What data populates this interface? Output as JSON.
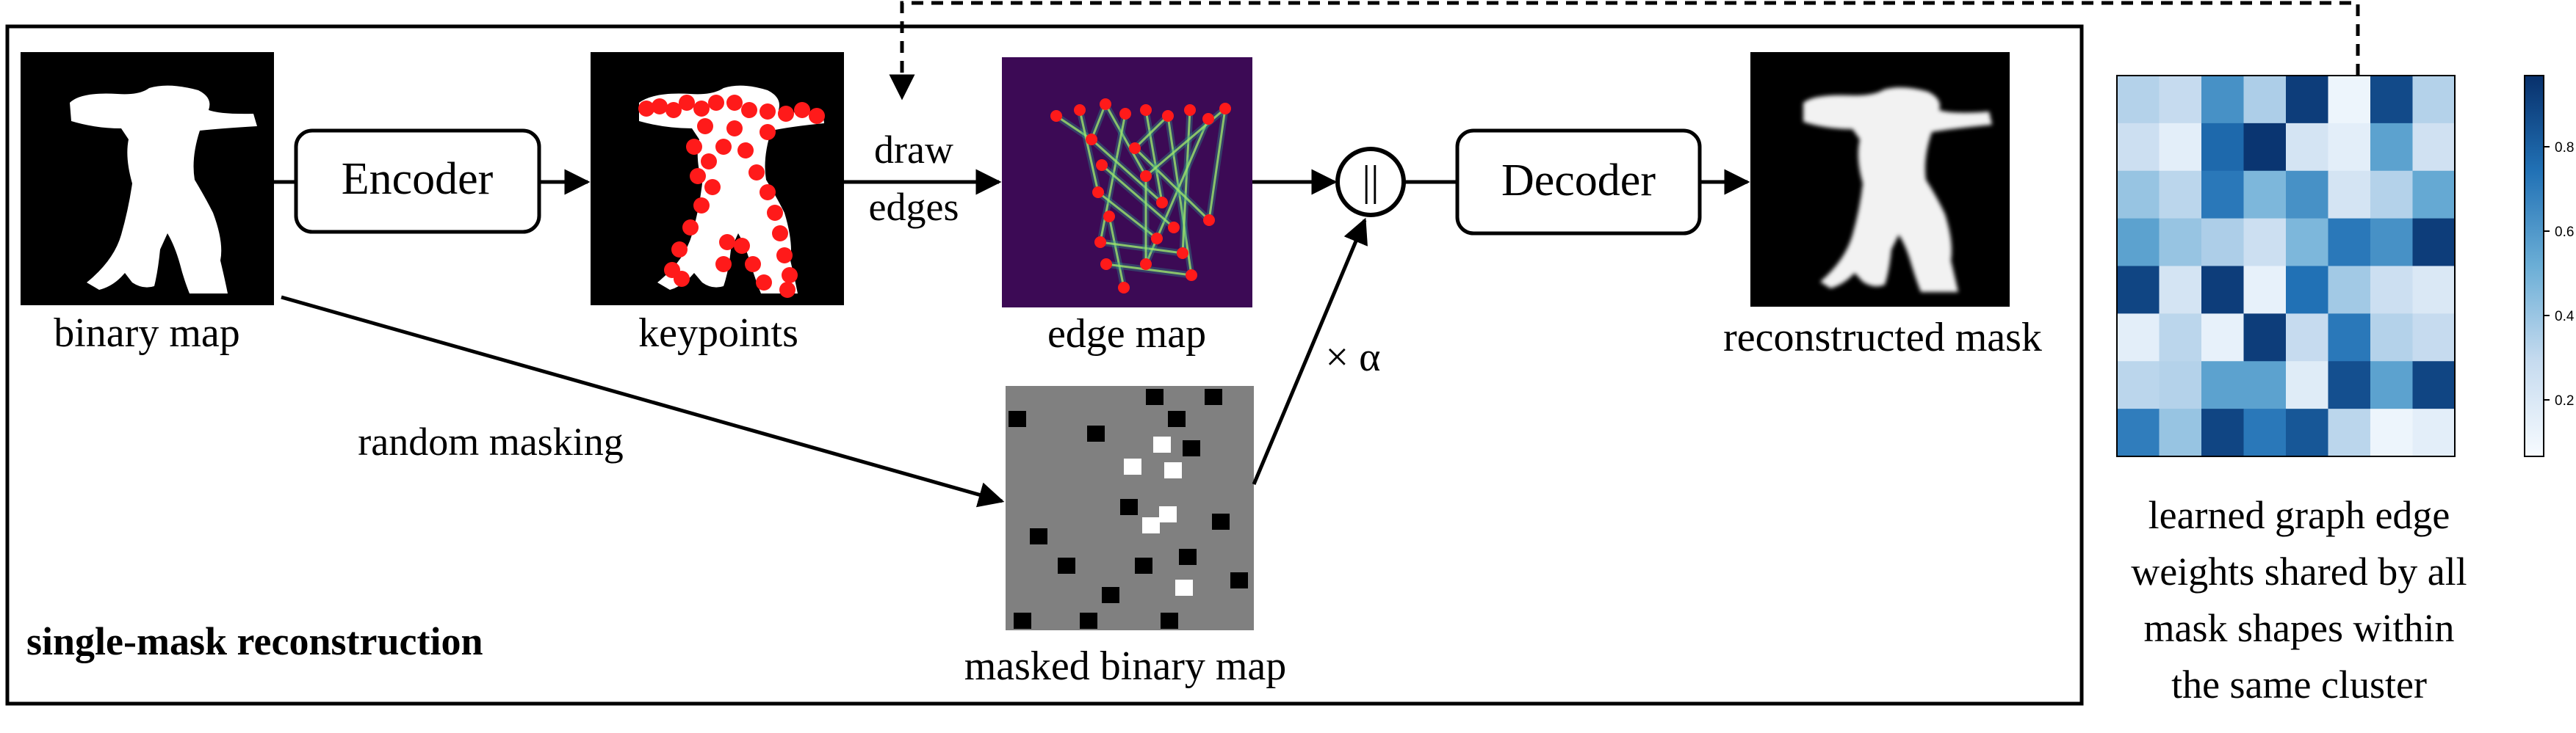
{
  "labels": {
    "binary_map": "binary map",
    "keypoints": "keypoints",
    "edge_map": "edge map",
    "reconstructed_mask": "reconstructed mask",
    "masked_binary_map": "masked binary map",
    "random_masking": "random masking",
    "draw_edges_line1": "draw",
    "draw_edges_line2": "edges",
    "alpha": "× α",
    "concat_symbol": "||",
    "panel_title": "single-mask reconstruction",
    "caption_line1": "learned graph edge",
    "caption_line2": "weights shared by all",
    "caption_line3": "mask shapes within",
    "caption_line4": "the same cluster"
  },
  "encoder": {
    "label": "Encoder"
  },
  "decoder": {
    "label": "Decoder"
  },
  "colorbar": {
    "ticks": [
      "0.8",
      "0.6",
      "0.4",
      "0.2"
    ]
  },
  "heatmap": {
    "colormap": "Blues",
    "values": [
      [
        0.3,
        0.25,
        0.62,
        0.32,
        0.95,
        0.05,
        0.9,
        0.3
      ],
      [
        0.22,
        0.1,
        0.78,
        0.98,
        0.18,
        0.1,
        0.55,
        0.2
      ],
      [
        0.38,
        0.28,
        0.72,
        0.45,
        0.62,
        0.18,
        0.3,
        0.52
      ],
      [
        0.55,
        0.38,
        0.32,
        0.22,
        0.45,
        0.72,
        0.62,
        0.95
      ],
      [
        0.92,
        0.18,
        0.95,
        0.08,
        0.75,
        0.35,
        0.22,
        0.15
      ],
      [
        0.1,
        0.28,
        0.08,
        0.95,
        0.25,
        0.72,
        0.3,
        0.25
      ],
      [
        0.28,
        0.3,
        0.55,
        0.55,
        0.12,
        0.88,
        0.55,
        0.92
      ],
      [
        0.7,
        0.38,
        0.92,
        0.72,
        0.85,
        0.28,
        0.05,
        0.1
      ]
    ]
  },
  "colors": {
    "edge_map_background": "#3c0a55",
    "keypoint_dot": "#ff1a1a",
    "masked_gray": "#808080"
  }
}
